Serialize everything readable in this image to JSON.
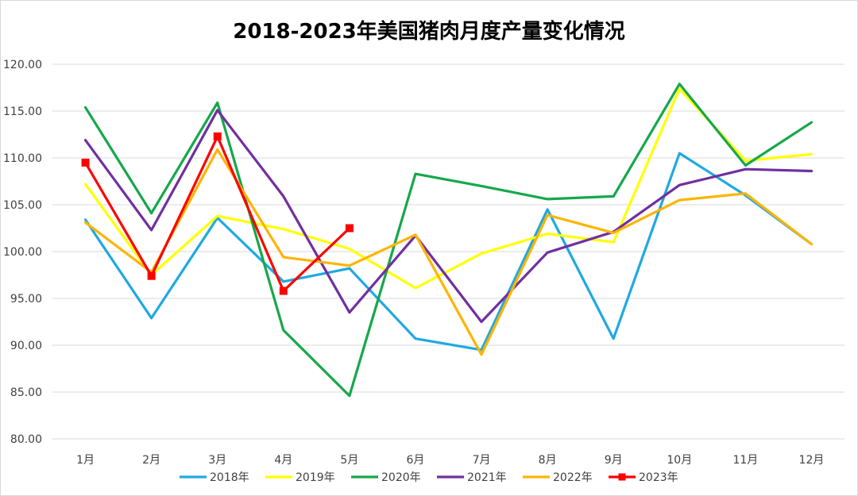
{
  "chart_data": {
    "type": "line",
    "title": "2018-2023年美国猪肉月度产量变化情况",
    "xlabel": "",
    "ylabel": "",
    "categories": [
      "1月",
      "2月",
      "3月",
      "4月",
      "5月",
      "6月",
      "7月",
      "8月",
      "9月",
      "10月",
      "11月",
      "12月"
    ],
    "ylim": [
      80,
      120
    ],
    "yticks": [
      "80.00",
      "85.00",
      "90.00",
      "95.00",
      "100.00",
      "105.00",
      "110.00",
      "115.00",
      "120.00"
    ],
    "ytick_values": [
      80,
      85,
      90,
      95,
      100,
      105,
      110,
      115,
      120
    ],
    "grid": true,
    "legend_position": "bottom",
    "series": [
      {
        "name": "2018年",
        "color": "#1fa9e1",
        "marker": "none",
        "values": [
          103.4,
          92.9,
          103.6,
          96.8,
          98.2,
          90.7,
          89.5,
          104.5,
          90.7,
          110.5,
          106.0,
          100.8
        ]
      },
      {
        "name": "2019年",
        "color": "#ffff00",
        "marker": "none",
        "values": [
          107.2,
          97.5,
          103.8,
          102.4,
          100.3,
          96.1,
          99.8,
          101.9,
          101.0,
          117.4,
          109.7,
          110.4
        ]
      },
      {
        "name": "2020年",
        "color": "#15a84a",
        "marker": "none",
        "values": [
          115.4,
          104.1,
          115.9,
          91.6,
          84.6,
          108.3,
          107.0,
          105.6,
          105.9,
          117.9,
          109.2,
          113.8
        ]
      },
      {
        "name": "2021年",
        "color": "#7030a0",
        "marker": "none",
        "values": [
          111.9,
          102.3,
          115.1,
          105.9,
          93.5,
          101.7,
          92.5,
          99.9,
          102.1,
          107.1,
          108.8,
          108.6
        ]
      },
      {
        "name": "2022年",
        "color": "#ffb400",
        "marker": "none",
        "values": [
          103.1,
          97.8,
          110.9,
          99.4,
          98.5,
          101.8,
          89.0,
          103.9,
          102.0,
          105.5,
          106.2,
          100.8
        ]
      },
      {
        "name": "2023年",
        "color": "#ff0000",
        "marker": "square",
        "values": [
          109.5,
          97.4,
          112.3,
          95.8,
          102.5,
          null,
          null,
          null,
          null,
          null,
          null,
          null
        ]
      }
    ]
  }
}
